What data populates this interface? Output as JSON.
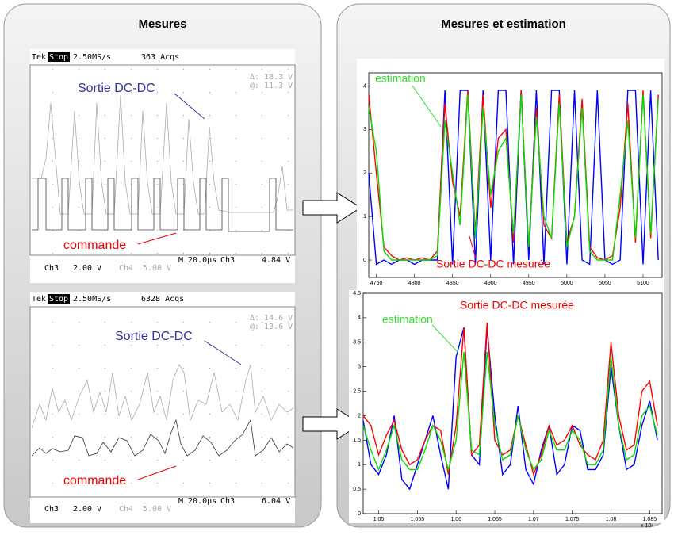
{
  "panel_titles": [
    "Mesures",
    "Mesures et estimation"
  ],
  "scopes": [
    {
      "header": [
        "Tek",
        "Stop",
        "2.50MS/s",
        "363 Acqs"
      ],
      "cursor": [
        "Δ: 18.3 V",
        "@: 11.3 V"
      ],
      "footer": [
        "M 20.0µs",
        "Ch3",
        "4.84 V",
        "Ch3",
        "2.00 V",
        "Ch4",
        "5.00 V"
      ],
      "labels": [
        "Sortie DC-DC",
        "commande"
      ]
    },
    {
      "header": [
        "Tek",
        "Stop",
        "2.50MS/s",
        "6328 Acqs"
      ],
      "cursor": [
        "Δ: 14.6 V",
        "@: 13.6 V"
      ],
      "footer": [
        "M 20.0µs",
        "Ch3",
        "6.04 V",
        "Ch3",
        "2.00 V",
        "Ch4",
        "5.00 V"
      ],
      "labels": [
        "Sortie DC-DC",
        "commande"
      ]
    }
  ],
  "chart_data": [
    {
      "type": "line",
      "annotations": [
        "estimation",
        "Sortie DC-DC mesurée"
      ],
      "x": [
        4740,
        4750,
        4760,
        4770,
        4780,
        4790,
        4800,
        4810,
        4820,
        4830,
        4840,
        4850,
        4860,
        4870,
        4880,
        4890,
        4900,
        4910,
        4920,
        4930,
        4940,
        4950,
        4960,
        4970,
        4980,
        4990,
        5000,
        5010,
        5020,
        5030,
        5040,
        5050,
        5060,
        5070,
        5080,
        5090,
        5100,
        5110,
        5120
      ],
      "xlim": [
        4740,
        5125
      ],
      "xticks": [
        4750,
        4800,
        4850,
        4900,
        4950,
        5000,
        5050,
        5100
      ],
      "ylim": [
        -0.4,
        4.3
      ],
      "yticks": [
        0,
        1,
        2,
        3,
        4
      ],
      "series": [
        {
          "color": "#0000ff",
          "values": [
            2,
            -0.1,
            0,
            -0.1,
            0,
            0,
            -0.1,
            0,
            0,
            0,
            3.9,
            -0.1,
            3.9,
            3.9,
            -0.1,
            3.9,
            0,
            3.9,
            3.9,
            -0.1,
            3.9,
            0,
            3.9,
            -0.1,
            3.9,
            3.9,
            -0.1,
            3.9,
            0,
            -0.1,
            3.9,
            0,
            -0.1,
            0,
            3.9,
            3.9,
            -0.1,
            3.9,
            0
          ]
        },
        {
          "color": "#ff0000",
          "values": [
            3.8,
            2.0,
            0.3,
            0.1,
            0,
            0.05,
            0,
            0.05,
            0,
            0.2,
            3.6,
            1.8,
            1.0,
            3.9,
            0.6,
            3.8,
            1.2,
            2.8,
            3.0,
            0.4,
            3.9,
            0.3,
            3.5,
            0.8,
            0.5,
            3.8,
            0.4,
            1.0,
            3.7,
            0.3,
            0.05,
            0,
            0.1,
            1.2,
            3.6,
            0.4,
            3.9,
            0.5,
            3.8
          ]
        },
        {
          "color": "#00dd00",
          "values": [
            3.5,
            2.5,
            0.2,
            0,
            0,
            0,
            0,
            0,
            0,
            0.1,
            3.2,
            2.0,
            0.8,
            3.8,
            0.5,
            3.5,
            1.5,
            2.5,
            2.8,
            0.6,
            3.8,
            0.3,
            3.3,
            1.0,
            0.5,
            3.6,
            0.3,
            1.0,
            3.5,
            0.2,
            0,
            0,
            0,
            1.5,
            3.2,
            0.5,
            3.8,
            0.6,
            3.7
          ]
        }
      ]
    },
    {
      "type": "line",
      "annotations": [
        "Sortie DC-DC mesurée",
        "estimation",
        "x 10⁴"
      ],
      "x": [
        1.048,
        1.049,
        1.05,
        1.051,
        1.052,
        1.053,
        1.054,
        1.055,
        1.056,
        1.057,
        1.058,
        1.059,
        1.06,
        1.061,
        1.062,
        1.063,
        1.064,
        1.065,
        1.066,
        1.067,
        1.068,
        1.069,
        1.07,
        1.071,
        1.072,
        1.073,
        1.074,
        1.075,
        1.076,
        1.077,
        1.078,
        1.079,
        1.08,
        1.081,
        1.082,
        1.083,
        1.084,
        1.085,
        1.086
      ],
      "xlim": [
        1.048,
        1.0866
      ],
      "xticks": [
        1.05,
        1.055,
        1.06,
        1.065,
        1.07,
        1.075,
        1.08,
        1.085
      ],
      "ylim": [
        0,
        4.5
      ],
      "yticks": [
        0,
        0.5,
        1,
        1.5,
        2,
        2.5,
        3,
        3.5,
        4,
        4.5
      ],
      "series": [
        {
          "color": "#0000ff",
          "values": [
            1.9,
            1.0,
            0.8,
            1.2,
            2.0,
            0.7,
            0.5,
            1.0,
            1.5,
            2.0,
            1.2,
            0.5,
            3.2,
            3.8,
            1.2,
            1.0,
            3.8,
            2.0,
            0.8,
            1.0,
            2.2,
            0.9,
            0.6,
            1.3,
            1.8,
            0.8,
            1.0,
            1.8,
            1.7,
            0.9,
            0.9,
            1.2,
            3.0,
            1.8,
            0.9,
            1.0,
            1.8,
            2.3,
            1.5
          ]
        },
        {
          "color": "#ff0000",
          "values": [
            2.0,
            1.8,
            1.2,
            1.6,
            1.9,
            1.3,
            1.0,
            1.1,
            1.5,
            1.8,
            1.7,
            0.8,
            1.8,
            3.8,
            1.2,
            1.4,
            3.9,
            1.5,
            1.2,
            1.3,
            2.0,
            1.4,
            0.8,
            1.2,
            1.8,
            1.4,
            1.5,
            1.8,
            1.4,
            1.2,
            1.1,
            1.5,
            3.5,
            2.0,
            1.3,
            1.4,
            2.5,
            2.7,
            1.8
          ]
        },
        {
          "color": "#00dd00",
          "values": [
            1.8,
            1.3,
            0.9,
            1.3,
            1.8,
            1.1,
            0.9,
            0.9,
            1.3,
            1.8,
            1.5,
            0.9,
            1.5,
            3.3,
            1.3,
            1.2,
            3.3,
            1.8,
            1.1,
            1.2,
            2.0,
            1.3,
            0.9,
            1.1,
            1.7,
            1.3,
            1.3,
            1.7,
            1.5,
            1.0,
            1.0,
            1.3,
            3.2,
            1.8,
            1.1,
            1.2,
            2.0,
            2.2,
            1.6
          ]
        }
      ]
    }
  ]
}
